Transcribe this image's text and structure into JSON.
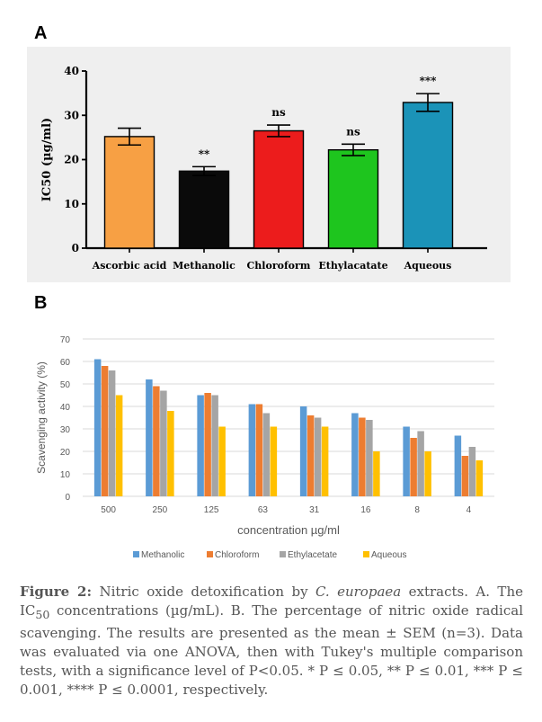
{
  "panels": {
    "a": "A",
    "b": "B"
  },
  "chart_data": [
    {
      "type": "bar",
      "ylabel": "IC50 (µg/ml)",
      "ylim": [
        0,
        40
      ],
      "yticks": [
        0,
        10,
        20,
        30,
        40
      ],
      "categories": [
        "Ascorbic acid",
        "Methanolic",
        "Chloroform",
        "Ethylacatate",
        "Aqueous"
      ],
      "values": [
        25.2,
        17.4,
        26.5,
        22.2,
        32.9
      ],
      "errors": [
        1.9,
        1.0,
        1.3,
        1.3,
        2.0
      ],
      "annotations": [
        "",
        "**",
        "ns",
        "ns",
        "***"
      ],
      "colors": [
        "#f7a044",
        "#0a0a0a",
        "#ec1c1c",
        "#1ec51e",
        "#1b93b8"
      ],
      "grid": false
    },
    {
      "type": "bar",
      "ylabel": "Scavenging activity (%)",
      "xlabel": "concentration µg/ml",
      "ylim": [
        0,
        70
      ],
      "yticks": [
        0,
        10,
        20,
        30,
        40,
        50,
        60,
        70
      ],
      "categories": [
        "500",
        "250",
        "125",
        "63",
        "31",
        "16",
        "8",
        "4"
      ],
      "series": [
        {
          "name": "Methanolic",
          "color": "#5b9bd5",
          "values": [
            61,
            52,
            45,
            41,
            40,
            37,
            31,
            27
          ]
        },
        {
          "name": "Chloroform",
          "color": "#ed7d31",
          "values": [
            58,
            49,
            46,
            41,
            36,
            35,
            26,
            18
          ]
        },
        {
          "name": "Ethylacetate",
          "color": "#a5a5a5",
          "values": [
            56,
            47,
            45,
            37,
            35,
            34,
            29,
            22
          ]
        },
        {
          "name": "Aqueous",
          "color": "#ffc000",
          "values": [
            45,
            38,
            31,
            31,
            31,
            20,
            20,
            16
          ]
        }
      ],
      "grid": true,
      "legend": "bottom"
    }
  ],
  "caption": {
    "figure": "Figure 2:",
    "t1": " Nitric oxide detoxification by ",
    "species": "C. europaea",
    "t2": " extracts. A. The IC",
    "sub": "50",
    "t3": " concentrations (µg/mL). B. The percentage of nitric oxide radical scavenging. The results are presented as the mean ± SEM (n=3). Data was evaluated via one ANOVA, then with Tukey's multiple comparison tests, with a significance level of P<0.05. * P ≤ 0.05, ** P ≤ 0.01, *** P ≤ 0.001, **** P ≤ 0.0001, respectively."
  }
}
